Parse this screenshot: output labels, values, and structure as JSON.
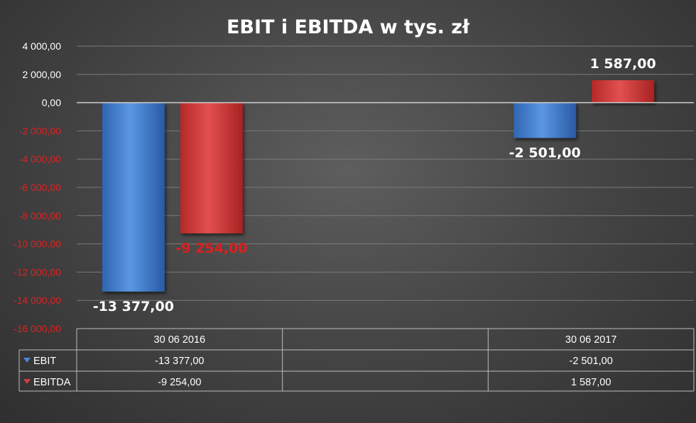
{
  "chart_data": {
    "type": "bar",
    "title": "EBIT i EBITDA w tys. zł",
    "categories": [
      "30 06 2016",
      "",
      "30 06 2017"
    ],
    "series": [
      {
        "name": "EBIT",
        "values": [
          -13377,
          null,
          -2501
        ],
        "labels": [
          "-13 377,00",
          "",
          "-2 501,00"
        ],
        "color": "#4a86d8"
      },
      {
        "name": "EBITDA",
        "values": [
          -9254,
          null,
          1587
        ],
        "labels": [
          "-9 254,00",
          "",
          "1 587,00"
        ],
        "color": "#d63c3c"
      }
    ],
    "ylim": [
      -16000,
      4000
    ],
    "ytick_values": [
      4000,
      2000,
      0,
      -2000,
      -4000,
      -6000,
      -8000,
      -10000,
      -12000,
      -14000,
      -16000
    ],
    "ytick_labels": [
      "4 000,00",
      "2 000,00",
      "0,00",
      "-2 000,00",
      "-4 000,00",
      "-6 000,00",
      "-8 000,00",
      "-10 000,00",
      "-12 000,00",
      "-14 000,00",
      "-16 000,00"
    ],
    "negative_tick_color": "#e02020",
    "grid": true,
    "legend": "data-table"
  },
  "data_table": {
    "rows": [
      {
        "name": "EBIT",
        "values": [
          "-13 377,00",
          "",
          "-2 501,00"
        ]
      },
      {
        "name": "EBITDA",
        "values": [
          "-9 254,00",
          "",
          "1 587,00"
        ]
      }
    ]
  }
}
